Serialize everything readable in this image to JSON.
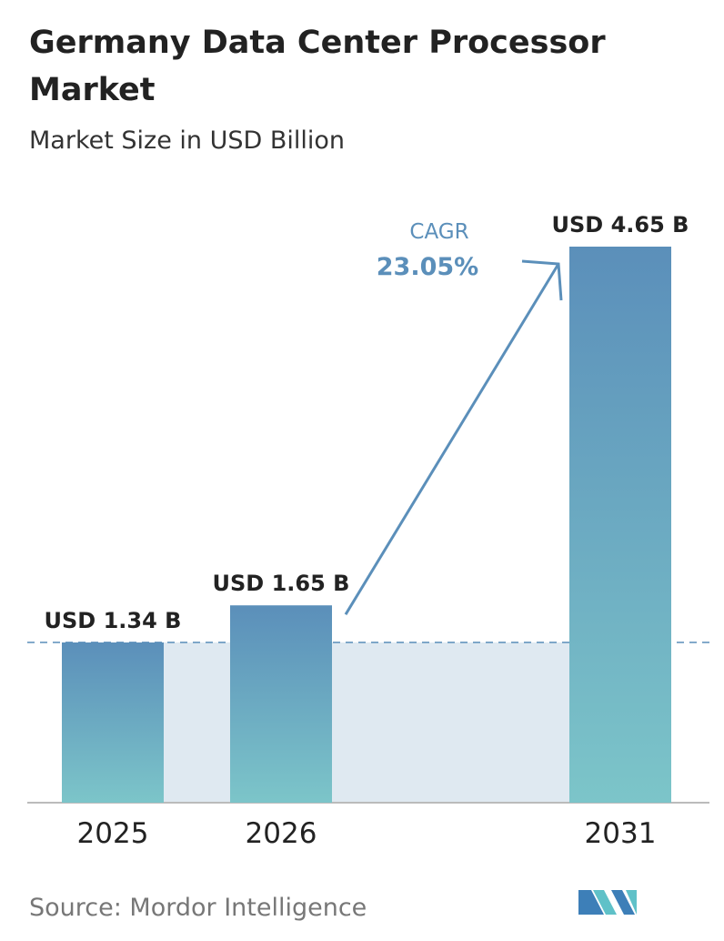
{
  "chart_data": {
    "type": "bar",
    "title": "Germany Data Center Processor Market",
    "subtitle": "Market Size in USD Billion",
    "categories": [
      "2025",
      "2026",
      "2031"
    ],
    "values": [
      1.34,
      1.65,
      4.65
    ],
    "value_labels": [
      "USD 1.34 B",
      "USD 1.65 B",
      "USD 4.65 B"
    ],
    "color": [
      "#5b8fba",
      "#7cc5c9"
    ],
    "annotations": {
      "cagr_label": "CAGR",
      "cagr_value": "23.05%"
    },
    "source": "Source: Mordor Intelligence"
  }
}
